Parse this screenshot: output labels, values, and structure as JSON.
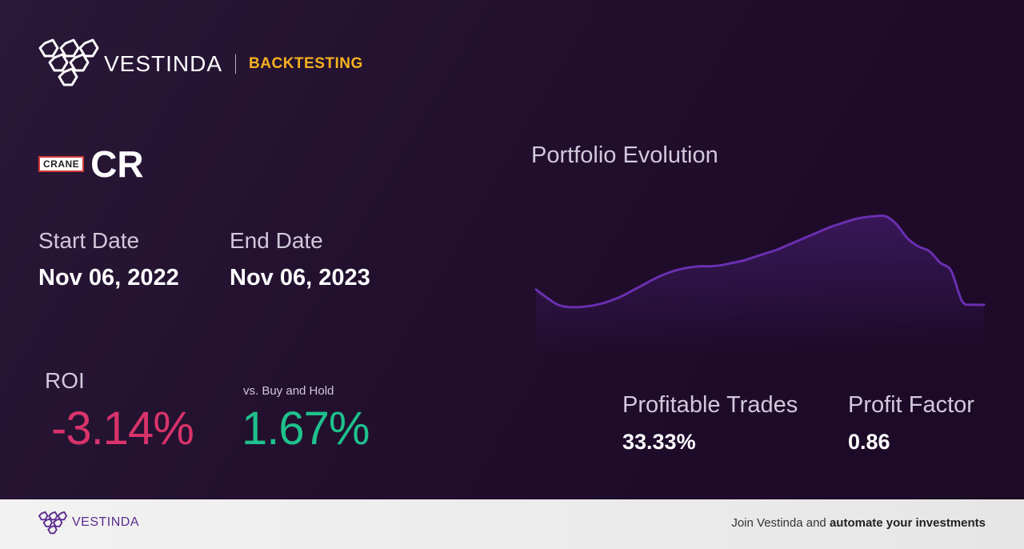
{
  "brand": {
    "name": "VESTINDA",
    "section": "BACKTESTING",
    "accent": "#f5b21e",
    "logo_icon": "hexagon-cluster-logo"
  },
  "ticker": {
    "badge": "CRANE",
    "symbol": "CR"
  },
  "dates": {
    "start_label": "Start Date",
    "start_value": "Nov 06, 2022",
    "end_label": "End Date",
    "end_value": "Nov 06, 2023"
  },
  "roi": {
    "label": "ROI",
    "value": "-3.14%",
    "value_color": "#d8336a",
    "bh_label": "vs. Buy and Hold",
    "bh_value": "1.67%",
    "bh_color": "#1fc18c"
  },
  "chart": {
    "title": "Portfolio Evolution",
    "line_color": "#6a2fb0",
    "chart_data": {
      "type": "line",
      "values": [
        40,
        33,
        27,
        25,
        25,
        26,
        28,
        31,
        35,
        40,
        45,
        50,
        54,
        57,
        59,
        60,
        60,
        61,
        63,
        65,
        68,
        71,
        74,
        78,
        82,
        86,
        90,
        94,
        97,
        100,
        102,
        103,
        103,
        96,
        84,
        77,
        73,
        63,
        56,
        30,
        27,
        27
      ]
    }
  },
  "stats": {
    "profitable_label": "Profitable Trades",
    "profitable_value": "33.33%",
    "factor_label": "Profit Factor",
    "factor_value": "0.86"
  },
  "footer": {
    "name": "VESTINDA",
    "cta_prefix": "Join Vestinda and ",
    "cta_bold": "automate your investments"
  }
}
